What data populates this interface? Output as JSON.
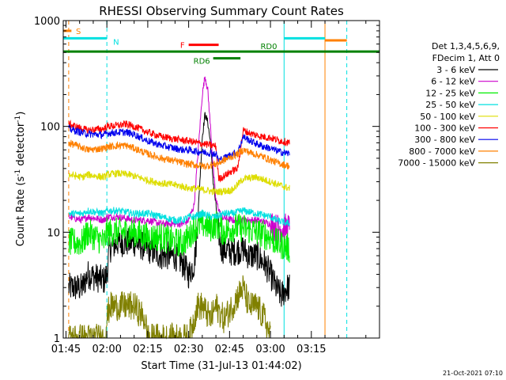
{
  "chart_data": {
    "type": "line",
    "title": "RHESSI Observing Summary Count Rates",
    "xlabel": "Start Time (31-Jul-13 01:44:02)",
    "ylabel_parts": [
      "Count Rate (s",
      "-1",
      " detector",
      "-1",
      ")"
    ],
    "yscale": "log",
    "ylim": [
      1,
      1000
    ],
    "xlim_min": [
      104,
      220
    ],
    "x_ticks": [
      {
        "min": 105,
        "label": "01:45"
      },
      {
        "min": 120,
        "label": "02:00"
      },
      {
        "min": 135,
        "label": "02:15"
      },
      {
        "min": 150,
        "label": "02:30"
      },
      {
        "min": 165,
        "label": "02:45"
      },
      {
        "min": 180,
        "label": "03:00"
      },
      {
        "min": 195,
        "label": "03:15"
      }
    ],
    "y_ticks": [
      {
        "value": 1,
        "label": "1"
      },
      {
        "value": 10,
        "label": "10"
      },
      {
        "value": 100,
        "label": "100"
      },
      {
        "value": 1000,
        "label": "1000"
      }
    ],
    "legend_header": [
      "Det 1,3,4,5,6,9,",
      "FDecim 1, Att 0"
    ],
    "legend_placement": "right",
    "series": [
      {
        "name": "3 - 6 keV",
        "color": "#000000",
        "points": [
          [
            106,
            3
          ],
          [
            111,
            3
          ],
          [
            113,
            4
          ],
          [
            119,
            3.5
          ],
          [
            120,
            4
          ],
          [
            121,
            7
          ],
          [
            124,
            8
          ],
          [
            130,
            8
          ],
          [
            135,
            7
          ],
          [
            140,
            6
          ],
          [
            145,
            6
          ],
          [
            148,
            5
          ],
          [
            150,
            4
          ],
          [
            152,
            5
          ],
          [
            153,
            9
          ],
          [
            155,
            80
          ],
          [
            156,
            130
          ],
          [
            157,
            110
          ],
          [
            158,
            70
          ],
          [
            159,
            30
          ],
          [
            160,
            18
          ],
          [
            161,
            10
          ],
          [
            162,
            7
          ],
          [
            166,
            6.5
          ],
          [
            170,
            7
          ],
          [
            172,
            6
          ],
          [
            175,
            6
          ],
          [
            178,
            5
          ],
          [
            180,
            4
          ],
          [
            182,
            3
          ],
          [
            184,
            2.5
          ],
          [
            186,
            3
          ],
          [
            187,
            3
          ]
        ]
      },
      {
        "name": "6 - 12 keV",
        "color": "#cc00cc",
        "points": [
          [
            106,
            14
          ],
          [
            111,
            13
          ],
          [
            113,
            14
          ],
          [
            119,
            13
          ],
          [
            120,
            14
          ],
          [
            124,
            14
          ],
          [
            130,
            13
          ],
          [
            135,
            13
          ],
          [
            140,
            12
          ],
          [
            145,
            12
          ],
          [
            148,
            12
          ],
          [
            150,
            13
          ],
          [
            152,
            18
          ],
          [
            153,
            40
          ],
          [
            155,
            200
          ],
          [
            156,
            300
          ],
          [
            157,
            220
          ],
          [
            158,
            100
          ],
          [
            159,
            40
          ],
          [
            160,
            20
          ],
          [
            162,
            14
          ],
          [
            166,
            13
          ],
          [
            170,
            13
          ],
          [
            175,
            13
          ],
          [
            180,
            12
          ],
          [
            182,
            11
          ],
          [
            187,
            11
          ]
        ]
      },
      {
        "name": "12 - 25 keV",
        "color": "#00ee00",
        "points": [
          [
            106,
            8
          ],
          [
            111,
            8
          ],
          [
            113,
            10
          ],
          [
            119,
            8
          ],
          [
            120,
            10
          ],
          [
            124,
            10
          ],
          [
            130,
            10
          ],
          [
            135,
            9
          ],
          [
            140,
            9
          ],
          [
            145,
            8
          ],
          [
            148,
            8
          ],
          [
            150,
            9
          ],
          [
            152,
            11
          ],
          [
            155,
            12
          ],
          [
            158,
            11
          ],
          [
            160,
            12
          ],
          [
            163,
            10
          ],
          [
            166,
            11
          ],
          [
            170,
            11
          ],
          [
            175,
            10
          ],
          [
            180,
            9
          ],
          [
            182,
            8
          ],
          [
            187,
            7
          ]
        ]
      },
      {
        "name": "25 - 50 keV",
        "color": "#00e0e0",
        "points": [
          [
            106,
            15
          ],
          [
            111,
            15
          ],
          [
            113,
            16
          ],
          [
            119,
            15
          ],
          [
            120,
            16
          ],
          [
            124,
            16
          ],
          [
            130,
            15
          ],
          [
            135,
            15
          ],
          [
            140,
            14
          ],
          [
            145,
            13
          ],
          [
            148,
            13
          ],
          [
            150,
            14
          ],
          [
            152,
            14
          ],
          [
            155,
            15
          ],
          [
            158,
            14
          ],
          [
            160,
            14
          ],
          [
            163,
            15
          ],
          [
            166,
            15
          ],
          [
            170,
            16
          ],
          [
            175,
            15
          ],
          [
            180,
            14
          ],
          [
            182,
            13
          ],
          [
            187,
            12
          ]
        ]
      },
      {
        "name": "50 - 100 keV",
        "color": "#dddd00",
        "points": [
          [
            106,
            35
          ],
          [
            111,
            33
          ],
          [
            113,
            35
          ],
          [
            119,
            33
          ],
          [
            120,
            35
          ],
          [
            124,
            36
          ],
          [
            128,
            35
          ],
          [
            130,
            34
          ],
          [
            135,
            31
          ],
          [
            140,
            29
          ],
          [
            145,
            28
          ],
          [
            148,
            27
          ],
          [
            150,
            26
          ],
          [
            152,
            26
          ],
          [
            156,
            25
          ],
          [
            160,
            24
          ],
          [
            166,
            25
          ],
          [
            170,
            32
          ],
          [
            175,
            33
          ],
          [
            180,
            30
          ],
          [
            183,
            28
          ],
          [
            187,
            26
          ]
        ]
      },
      {
        "name": "100 - 300 keV",
        "color": "#ff0000",
        "points": [
          [
            106,
            105
          ],
          [
            111,
            95
          ],
          [
            113,
            92
          ],
          [
            119,
            95
          ],
          [
            120,
            100
          ],
          [
            124,
            102
          ],
          [
            127,
            105
          ],
          [
            130,
            100
          ],
          [
            135,
            88
          ],
          [
            140,
            80
          ],
          [
            145,
            76
          ],
          [
            148,
            74
          ],
          [
            150,
            73
          ],
          [
            153,
            70
          ],
          [
            156,
            68
          ],
          [
            160,
            65
          ],
          [
            161,
            32
          ],
          [
            163,
            34
          ],
          [
            166,
            38
          ],
          [
            168,
            40
          ],
          [
            170,
            92
          ],
          [
            173,
            85
          ],
          [
            177,
            80
          ],
          [
            180,
            78
          ],
          [
            183,
            74
          ],
          [
            187,
            70
          ]
        ]
      },
      {
        "name": "300 - 800 keV",
        "color": "#0000ee",
        "points": [
          [
            106,
            95
          ],
          [
            111,
            87
          ],
          [
            113,
            85
          ],
          [
            119,
            83
          ],
          [
            120,
            86
          ],
          [
            124,
            88
          ],
          [
            127,
            88
          ],
          [
            130,
            84
          ],
          [
            135,
            73
          ],
          [
            140,
            66
          ],
          [
            145,
            62
          ],
          [
            148,
            60
          ],
          [
            150,
            60
          ],
          [
            153,
            58
          ],
          [
            156,
            57
          ],
          [
            160,
            55
          ],
          [
            161,
            48
          ],
          [
            163,
            50
          ],
          [
            166,
            55
          ],
          [
            168,
            57
          ],
          [
            170,
            80
          ],
          [
            173,
            72
          ],
          [
            177,
            65
          ],
          [
            180,
            62
          ],
          [
            183,
            58
          ],
          [
            187,
            55
          ]
        ]
      },
      {
        "name": "800 - 7000 keV",
        "color": "#ff8000",
        "points": [
          [
            106,
            70
          ],
          [
            111,
            63
          ],
          [
            113,
            60
          ],
          [
            119,
            62
          ],
          [
            120,
            64
          ],
          [
            124,
            66
          ],
          [
            127,
            66
          ],
          [
            130,
            62
          ],
          [
            135,
            55
          ],
          [
            140,
            50
          ],
          [
            145,
            47
          ],
          [
            148,
            45
          ],
          [
            150,
            44
          ],
          [
            153,
            43
          ],
          [
            156,
            42
          ],
          [
            160,
            44
          ],
          [
            163,
            48
          ],
          [
            166,
            52
          ],
          [
            168,
            55
          ],
          [
            170,
            60
          ],
          [
            173,
            56
          ],
          [
            177,
            52
          ],
          [
            180,
            48
          ],
          [
            183,
            45
          ],
          [
            187,
            42
          ]
        ]
      },
      {
        "name": "7000 - 15000 keV",
        "color": "#808000",
        "points": [
          [
            106,
            1
          ],
          [
            111,
            1
          ],
          [
            119,
            1
          ],
          [
            120,
            1.5
          ],
          [
            121,
            2
          ],
          [
            124,
            2
          ],
          [
            130,
            2
          ],
          [
            134,
            1.5
          ],
          [
            135,
            1
          ],
          [
            150,
            1
          ],
          [
            152,
            1.5
          ],
          [
            153,
            2
          ],
          [
            155,
            2
          ],
          [
            158,
            1.5
          ],
          [
            160,
            2
          ],
          [
            163,
            1.5
          ],
          [
            166,
            2
          ],
          [
            168,
            2.5
          ],
          [
            170,
            3
          ],
          [
            172,
            2
          ],
          [
            175,
            2
          ],
          [
            178,
            1.5
          ],
          [
            180,
            1
          ]
        ]
      }
    ],
    "flag_lines": [
      {
        "label": "S",
        "color": "#ff8000",
        "level": 800,
        "segments": [
          [
            104,
            107
          ]
        ]
      },
      {
        "label": "",
        "color": "#ff8000",
        "level": 650,
        "segments": [
          [
            200,
            208
          ]
        ]
      },
      {
        "label": "N",
        "color": "#00e0e0",
        "level": 680,
        "segments": [
          [
            104,
            120
          ],
          [
            185,
            200
          ]
        ]
      },
      {
        "label": "F",
        "color": "#ff0000",
        "level": 590,
        "segments": [
          [
            150,
            161
          ]
        ]
      },
      {
        "label": "RD0",
        "color": "#008000",
        "level": 510,
        "segments": [
          [
            104,
            220
          ]
        ]
      },
      {
        "label": "RD6",
        "color": "#008000",
        "level": 440,
        "segments": [
          [
            159,
            169
          ]
        ]
      }
    ],
    "vertical_lines": [
      {
        "min": 104,
        "color": "#00e0e0",
        "style": "solid"
      },
      {
        "min": 106,
        "color": "#ff8000",
        "style": "dashed"
      },
      {
        "min": 120,
        "color": "#00e0e0",
        "style": "dashed"
      },
      {
        "min": 185,
        "color": "#00e0e0",
        "style": "solid"
      },
      {
        "min": 200,
        "color": "#ff8000",
        "style": "solid"
      },
      {
        "min": 208,
        "color": "#00e0e0",
        "style": "dashed"
      }
    ],
    "footer_timestamp": "21-Oct-2021 07:10",
    "grid": false
  }
}
